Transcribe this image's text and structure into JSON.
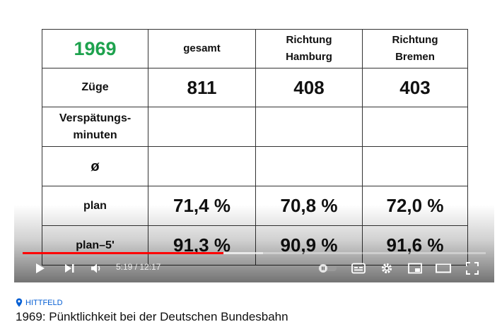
{
  "table": {
    "year": "1969",
    "headers": [
      "gesamt",
      "Richtung\nHamburg",
      "Richtung\nBremen"
    ],
    "rows": [
      {
        "label": "Züge",
        "values": [
          "811",
          "408",
          "403"
        ]
      },
      {
        "label": "Verspätungs-\nminuten",
        "values": [
          "",
          "",
          ""
        ]
      },
      {
        "label": "ø",
        "values": [
          "",
          "",
          ""
        ]
      },
      {
        "label": "plan",
        "values": [
          "71,4 %",
          "70,8 %",
          "72,0 %"
        ]
      },
      {
        "label": "plan–5'",
        "values": [
          "91,3 %",
          "90,9 %",
          "91,6 %"
        ]
      }
    ]
  },
  "player": {
    "time_current": "5:19",
    "time_total": "12:17",
    "time_display": "5:19 / 12:17",
    "progress_fraction": 0.433
  },
  "video": {
    "location": "HITTFELD",
    "title": "1969: Pünktlichkeit bei der Deutschen Bundesbahn"
  },
  "colors": {
    "year_green": "#1ea24e",
    "highlight_red": "#e0201d",
    "progress_red": "#ff0000",
    "link_blue": "#065fd4"
  },
  "icons": [
    "play-icon",
    "next-icon",
    "volume-icon",
    "autoplay-toggle-icon",
    "subtitles-icon",
    "settings-icon",
    "miniplayer-icon",
    "theater-icon",
    "fullscreen-icon",
    "location-pin-icon"
  ]
}
